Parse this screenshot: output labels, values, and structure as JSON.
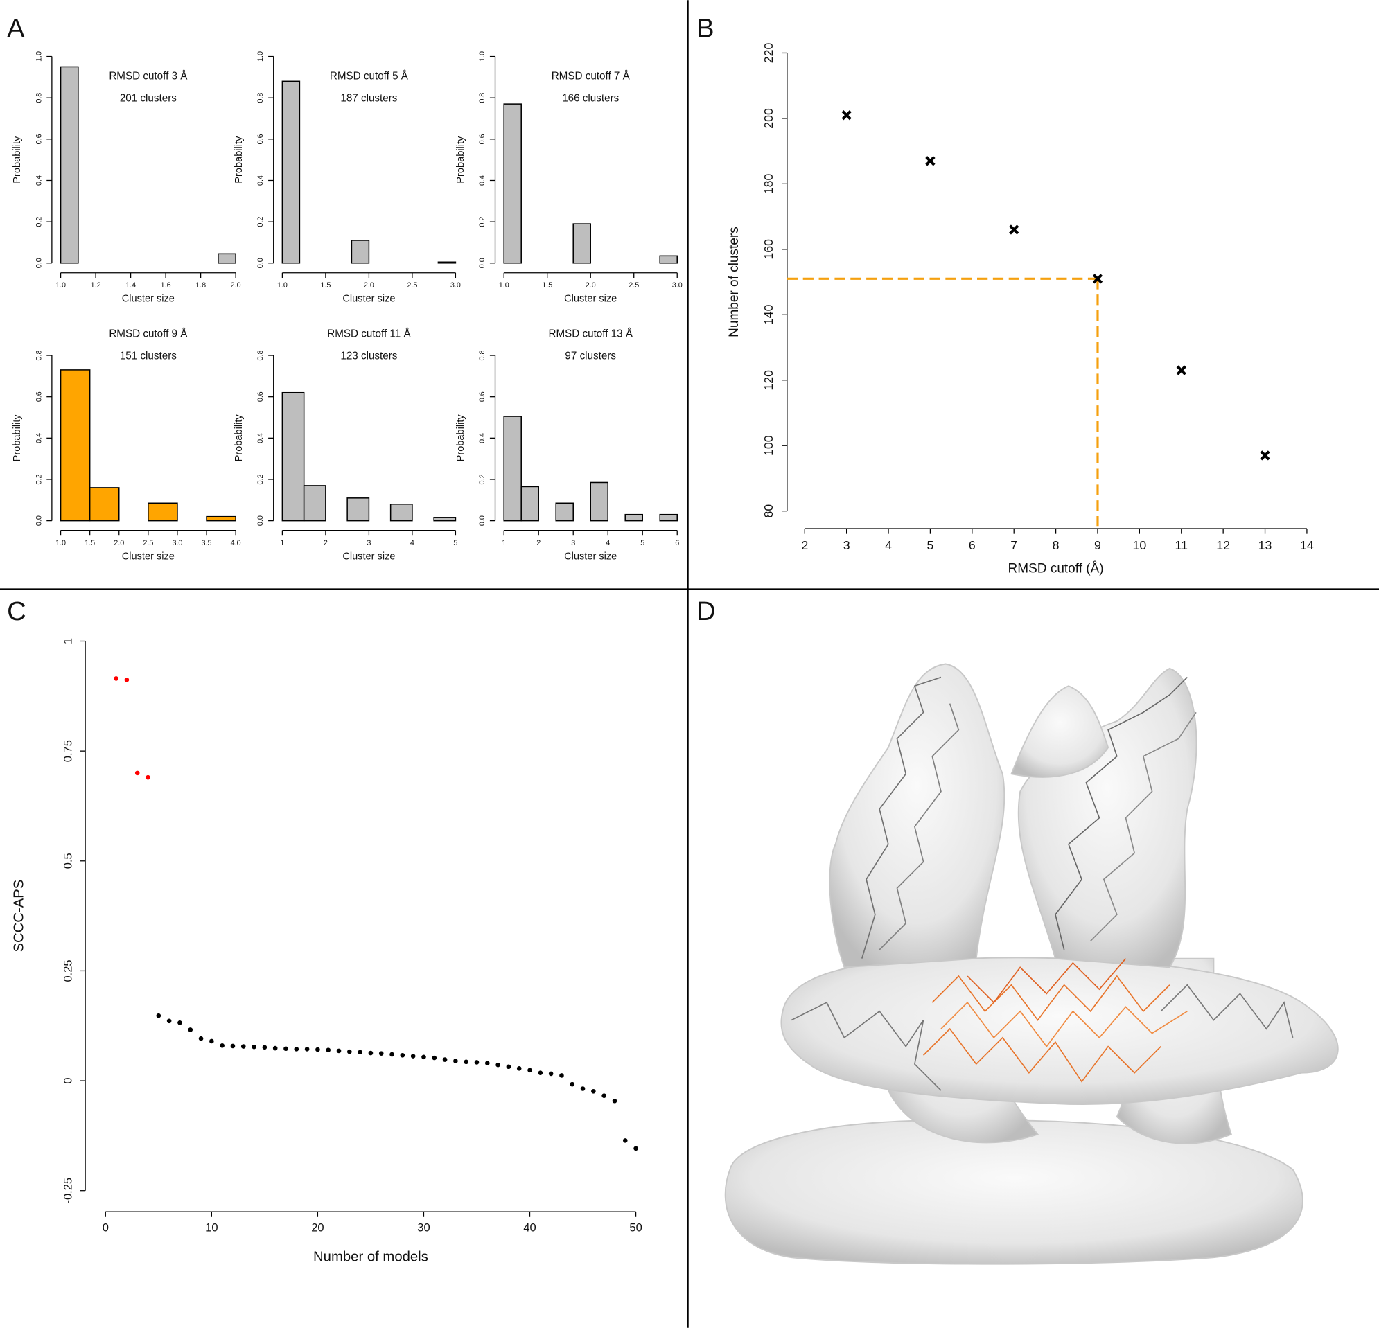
{
  "panels": [
    "A",
    "B",
    "C",
    "D"
  ],
  "chart_data": [
    {
      "type": "histogram",
      "title": "RMSD cutoff 3 Å",
      "subtitle": "201 clusters",
      "xlabel": "Cluster size",
      "ylabel": "Probability",
      "color": "#bebebe",
      "bins": [
        1.0,
        1.1,
        1.2,
        1.3,
        1.4,
        1.5,
        1.6,
        1.7,
        1.8,
        1.9,
        2.0
      ],
      "values": [
        0.95,
        0,
        0,
        0,
        0,
        0,
        0,
        0,
        0,
        0.045
      ],
      "xlim": [
        1,
        2
      ],
      "xticks": [
        {
          "value": 1,
          "label": "1.0"
        },
        1.2,
        1.4,
        1.6,
        1.8,
        {
          "value": 2,
          "label": "2.0"
        }
      ],
      "ylim": [
        0,
        1
      ],
      "yticks": [
        {
          "value": 0,
          "label": "0.0"
        },
        0.2,
        0.4,
        0.6,
        0.8,
        {
          "value": 1,
          "label": "1.0"
        }
      ]
    },
    {
      "type": "histogram",
      "title": "RMSD cutoff 5 Å",
      "subtitle": "187 clusters",
      "xlabel": "Cluster size",
      "ylabel": "Probability",
      "color": "#bebebe",
      "bins": [
        1.0,
        1.2,
        1.4,
        1.6,
        1.8,
        2.0,
        2.2,
        2.4,
        2.6,
        2.8,
        3.0
      ],
      "values": [
        0.88,
        0,
        0,
        0,
        0.11,
        0,
        0,
        0,
        0,
        0.005
      ],
      "xlim": [
        1,
        3
      ],
      "xticks": [
        {
          "value": 1,
          "label": "1.0"
        },
        1.5,
        {
          "value": 2,
          "label": "2.0"
        },
        2.5,
        {
          "value": 3,
          "label": "3.0"
        }
      ],
      "ylim": [
        0,
        1
      ],
      "yticks": [
        {
          "value": 0,
          "label": "0.0"
        },
        0.2,
        0.4,
        0.6,
        0.8,
        {
          "value": 1,
          "label": "1.0"
        }
      ]
    },
    {
      "type": "histogram",
      "title": "RMSD cutoff 7 Å",
      "subtitle": "166 clusters",
      "xlabel": "Cluster size",
      "ylabel": "Probability",
      "color": "#bebebe",
      "bins": [
        1.0,
        1.2,
        1.4,
        1.6,
        1.8,
        2.0,
        2.2,
        2.4,
        2.6,
        2.8,
        3.0
      ],
      "values": [
        0.77,
        0,
        0,
        0,
        0.19,
        0,
        0,
        0,
        0,
        0.035
      ],
      "xlim": [
        1,
        3
      ],
      "xticks": [
        {
          "value": 1,
          "label": "1.0"
        },
        1.5,
        {
          "value": 2,
          "label": "2.0"
        },
        2.5,
        {
          "value": 3,
          "label": "3.0"
        }
      ],
      "ylim": [
        0,
        1
      ],
      "yticks": [
        {
          "value": 0,
          "label": "0.0"
        },
        0.2,
        0.4,
        0.6,
        0.8,
        {
          "value": 1,
          "label": "1.0"
        }
      ]
    },
    {
      "type": "histogram",
      "title": "RMSD cutoff 9 Å",
      "subtitle": "151 clusters",
      "xlabel": "Cluster size",
      "ylabel": "Probability",
      "color": "#ffa500",
      "bins": [
        1.0,
        1.5,
        2.0,
        2.5,
        3.0,
        3.5,
        4.0
      ],
      "values": [
        0.73,
        0.16,
        0,
        0.085,
        0,
        0.02
      ],
      "xlim": [
        1,
        4
      ],
      "xticks": [
        {
          "value": 1,
          "label": "1.0"
        },
        1.5,
        {
          "value": 2,
          "label": "2.0"
        },
        2.5,
        {
          "value": 3,
          "label": "3.0"
        },
        3.5,
        {
          "value": 4,
          "label": "4.0"
        }
      ],
      "ylim": [
        0,
        0.8
      ],
      "yticks": [
        {
          "value": 0,
          "label": "0.0"
        },
        0.2,
        0.4,
        0.6,
        0.8
      ]
    },
    {
      "type": "histogram",
      "title": "RMSD cutoff 11 Å",
      "subtitle": "123 clusters",
      "xlabel": "Cluster size",
      "ylabel": "Probability",
      "color": "#bebebe",
      "bins": [
        1.0,
        1.5,
        2.0,
        2.5,
        3.0,
        3.5,
        4.0,
        4.5,
        5.0
      ],
      "values": [
        0.62,
        0.17,
        0,
        0.11,
        0,
        0.08,
        0,
        0.015
      ],
      "xlim": [
        1,
        5
      ],
      "xticks": [
        1,
        2,
        3,
        4,
        5
      ],
      "ylim": [
        0,
        0.8
      ],
      "yticks": [
        {
          "value": 0,
          "label": "0.0"
        },
        0.2,
        0.4,
        0.6,
        0.8
      ]
    },
    {
      "type": "histogram",
      "title": "RMSD cutoff 13 Å",
      "subtitle": "97 clusters",
      "xlabel": "Cluster size",
      "ylabel": "Probability",
      "color": "#bebebe",
      "bins": [
        1.0,
        1.5,
        2.0,
        2.5,
        3.0,
        3.5,
        4.0,
        4.5,
        5.0,
        5.5,
        6.0
      ],
      "values": [
        0.505,
        0.165,
        0,
        0.085,
        0,
        0.185,
        0,
        0.03,
        0,
        0.03
      ],
      "xlim": [
        1,
        6
      ],
      "xticks": [
        1,
        2,
        3,
        4,
        5,
        6
      ],
      "ylim": [
        0,
        0.8
      ],
      "yticks": [
        {
          "value": 0,
          "label": "0.0"
        },
        0.2,
        0.4,
        0.6,
        0.8
      ]
    },
    {
      "type": "scatter",
      "marker": "x",
      "xlabel": "RMSD cutoff (Å)",
      "ylabel": "Number of clusters",
      "series": [
        {
          "color": "#000000",
          "x": [
            3,
            5,
            7,
            9,
            11,
            13
          ],
          "values": [
            201,
            187,
            166,
            151,
            123,
            97
          ]
        }
      ],
      "guide": {
        "x": 9,
        "y": 151,
        "color": "#f5a00f"
      },
      "xlim": [
        2,
        14
      ],
      "xticks": [
        2,
        3,
        4,
        5,
        6,
        7,
        8,
        9,
        10,
        11,
        12,
        13,
        14
      ],
      "ylim": [
        80,
        220
      ],
      "yticks": [
        80,
        100,
        120,
        140,
        160,
        180,
        200,
        220
      ]
    },
    {
      "type": "scatter",
      "marker": "dot",
      "xlabel": "Number of models",
      "ylabel": "SCCC-APS",
      "series": [
        {
          "color": "#ff0000",
          "x": [
            1,
            2,
            3,
            4
          ],
          "values": [
            0.915,
            0.912,
            0.7,
            0.69
          ]
        },
        {
          "color": "#000000",
          "x": [
            5,
            6,
            7,
            8,
            9,
            10,
            11,
            12,
            13,
            14,
            15,
            16,
            17,
            18,
            19,
            20,
            21,
            22,
            23,
            24,
            25,
            26,
            27,
            28,
            29,
            30,
            31,
            32,
            33,
            34,
            35,
            36,
            37,
            38,
            39,
            40,
            41,
            42,
            43,
            44,
            45,
            46,
            47,
            48,
            49,
            50
          ],
          "values": [
            0.148,
            0.136,
            0.132,
            0.116,
            0.096,
            0.09,
            0.08,
            0.079,
            0.078,
            0.077,
            0.076,
            0.074,
            0.073,
            0.072,
            0.072,
            0.071,
            0.07,
            0.068,
            0.066,
            0.065,
            0.063,
            0.062,
            0.06,
            0.058,
            0.056,
            0.054,
            0.052,
            0.048,
            0.045,
            0.043,
            0.042,
            0.04,
            0.036,
            0.032,
            0.028,
            0.024,
            0.018,
            0.016,
            0.012,
            -0.008,
            -0.018,
            -0.024,
            -0.034,
            -0.046,
            -0.136,
            -0.154
          ]
        }
      ],
      "xlim": [
        0,
        50
      ],
      "xticks": [
        0,
        10,
        20,
        30,
        40,
        50
      ],
      "ylim": [
        -0.25,
        1
      ],
      "yticks": [
        -0.25,
        0,
        0.25,
        0.5,
        0.75,
        1
      ]
    }
  ]
}
